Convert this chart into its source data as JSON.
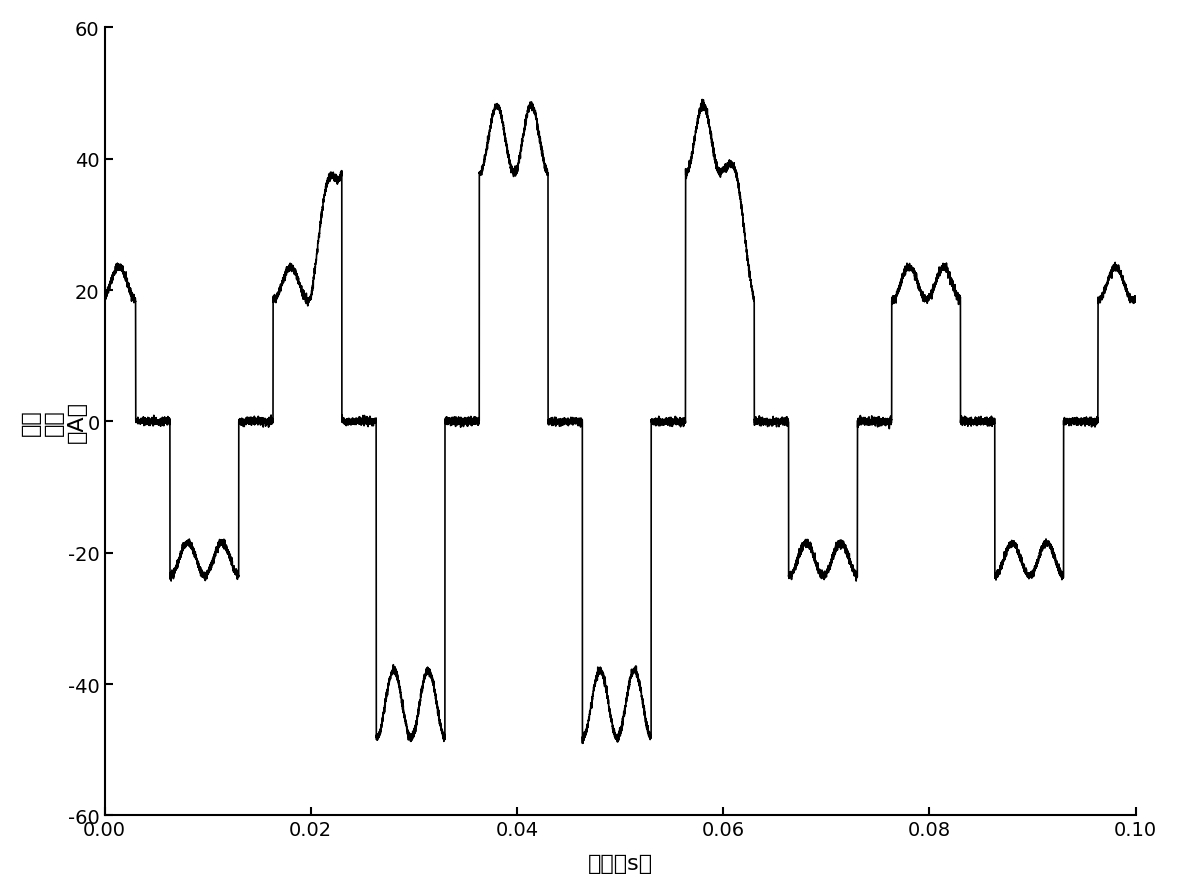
{
  "xlabel": "时间（s）",
  "ylabel_line1": "电网",
  "ylabel_line2": "电流",
  "ylabel_line3": "（A）",
  "xlim": [
    0.0,
    0.1
  ],
  "ylim": [
    -60,
    60
  ],
  "xticks": [
    0.0,
    0.02,
    0.04,
    0.06,
    0.08,
    0.1
  ],
  "yticks": [
    -60,
    -40,
    -20,
    0,
    20,
    40,
    60
  ],
  "line_color": "#000000",
  "line_width": 1.2,
  "background_color": "#ffffff",
  "fig_width": 11.78,
  "fig_height": 8.95,
  "dpi": 100,
  "amp_large": 43.0,
  "amp_small": 21.0,
  "f0": 50,
  "fs": 100000,
  "duration": 0.1
}
